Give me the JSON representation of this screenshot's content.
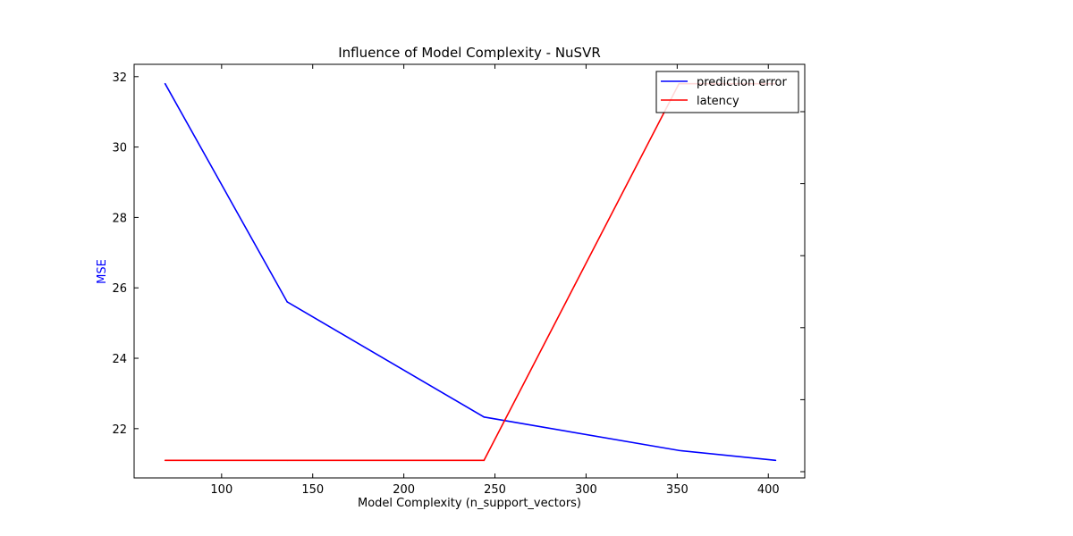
{
  "chart_data": {
    "type": "line",
    "title": "Influence of Model Complexity - NuSVR",
    "xlabel": "Model Complexity (n_support_vectors)",
    "ylabel": "MSE",
    "ylabel_color": "#0000ff",
    "xlim": [
      52,
      420
    ],
    "ylim": [
      20.6,
      32.35
    ],
    "xticks": [
      100,
      150,
      200,
      250,
      300,
      350,
      400
    ],
    "yticks": [
      22,
      24,
      26,
      28,
      30,
      32
    ],
    "legend_position": "top-right",
    "series": [
      {
        "name": "prediction error",
        "color": "#0000ff",
        "x": [
          69,
          136,
          244,
          351,
          404
        ],
        "y": [
          31.8,
          25.6,
          22.33,
          21.38,
          21.1
        ]
      },
      {
        "name": "latency",
        "color": "#ff0000",
        "x": [
          69,
          136,
          244,
          351,
          404
        ],
        "y": [
          21.1,
          21.1,
          21.1,
          31.8,
          31.8
        ]
      }
    ],
    "secondary_y_axis": {
      "side": "right",
      "tick_labels_shown": false,
      "tick_count": 6
    }
  }
}
